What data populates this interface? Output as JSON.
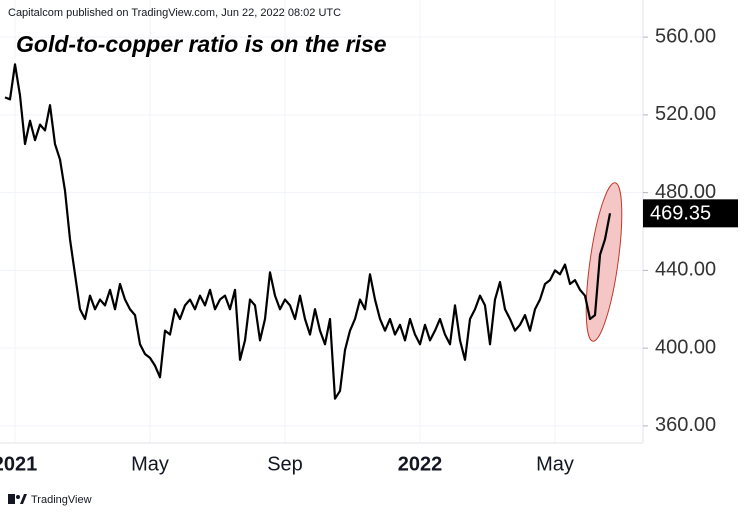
{
  "header": "Capitalcom published on TradingView.com, Jun 22, 2022 08:02 UTC",
  "footer": "TradingView",
  "chart_data": {
    "type": "line",
    "title": "Gold-to-copper ratio is on the rise",
    "color": "#000000",
    "grid": true,
    "categories": [
      null,
      null,
      "2021",
      null,
      null,
      null,
      null,
      null,
      null,
      null,
      null,
      null,
      null,
      null,
      null,
      null,
      null,
      null,
      null,
      null,
      null,
      null,
      null,
      null,
      null,
      null,
      null,
      null,
      null,
      "May",
      null,
      null,
      null,
      null,
      null,
      null,
      null,
      null,
      null,
      null,
      null,
      null,
      null,
      null,
      null,
      null,
      null,
      null,
      null,
      null,
      null,
      null,
      null,
      null,
      null,
      null,
      "Sep",
      null,
      null,
      null,
      null,
      null,
      null,
      null,
      null,
      null,
      null,
      null,
      null,
      null,
      null,
      null,
      null,
      null,
      null,
      null,
      null,
      null,
      null,
      null,
      null,
      null,
      null,
      "2022",
      null,
      null,
      null,
      null,
      null,
      null,
      null,
      null,
      null,
      null,
      null,
      null,
      null,
      null,
      null,
      null,
      null,
      null,
      null,
      null,
      null,
      null,
      null,
      null,
      null,
      null,
      "May",
      null,
      null,
      null,
      null,
      null,
      null,
      null,
      null,
      null,
      null,
      null
    ],
    "values": [
      529,
      528,
      546,
      530,
      505,
      517,
      507,
      515,
      512,
      525,
      505,
      497,
      481,
      456,
      438,
      420,
      415,
      427,
      420,
      425,
      422,
      430,
      420,
      433,
      425,
      420,
      417,
      402,
      397,
      395,
      391,
      385,
      409,
      407,
      420,
      415,
      422,
      425,
      420,
      427,
      422,
      430,
      420,
      425,
      427,
      420,
      430,
      394,
      404,
      425,
      422,
      404,
      415,
      439,
      427,
      420,
      425,
      422,
      415,
      427,
      415,
      407,
      420,
      409,
      402,
      415,
      374,
      378,
      399,
      409,
      415,
      425,
      420,
      438,
      425,
      415,
      409,
      415,
      407,
      412,
      404,
      415,
      407,
      402,
      412,
      404,
      409,
      415,
      407,
      402,
      422,
      404,
      394,
      415,
      420,
      427,
      422,
      402,
      425,
      434,
      420,
      415,
      409,
      412,
      417,
      409,
      420,
      425,
      433,
      435,
      440,
      438,
      443,
      433,
      435,
      430,
      427,
      415,
      417,
      448,
      456,
      469.35
    ],
    "ylim": [
      351.2,
      579.1
    ],
    "yticks": [
      {
        "value": 360,
        "label": "360.00"
      },
      {
        "value": 400,
        "label": "400.00"
      },
      {
        "value": 440,
        "label": "440.00"
      },
      {
        "value": 480,
        "label": "480.00"
      },
      {
        "value": 520,
        "label": "520.00"
      },
      {
        "value": 560,
        "label": "560.00"
      }
    ]
  }
}
